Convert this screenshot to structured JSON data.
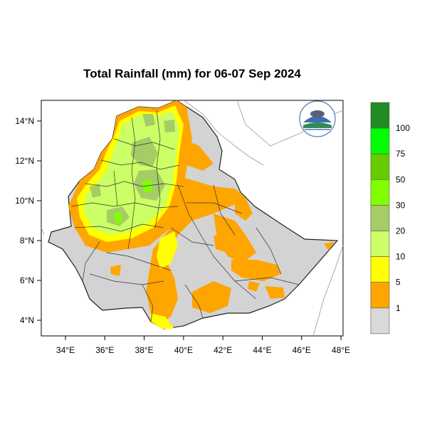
{
  "title": "Total Rainfall (mm) for 06-07 Sep 2024",
  "map": {
    "lon_range": [
      32.8,
      48.2
    ],
    "lat_range": [
      3.2,
      15.0
    ],
    "x_ticks": [
      "34°E",
      "36°E",
      "38°E",
      "40°E",
      "42°E",
      "44°E",
      "46°E",
      "48°E"
    ],
    "y_ticks": [
      "4°N",
      "6°N",
      "8°N",
      "10°N",
      "12°N",
      "14°N"
    ],
    "country_fill": "#d3d3d3",
    "logo_icon": "meteorology-agency-logo-icon"
  },
  "legend": {
    "labels": [
      "1",
      "5",
      "10",
      "20",
      "30",
      "50",
      "75",
      "100"
    ],
    "colors": [
      "#d9d9d9",
      "#ffa500",
      "#ffff00",
      "#ccff66",
      "#a6cc66",
      "#80ff00",
      "#66cc00",
      "#00ff00",
      "#228b22"
    ]
  }
}
